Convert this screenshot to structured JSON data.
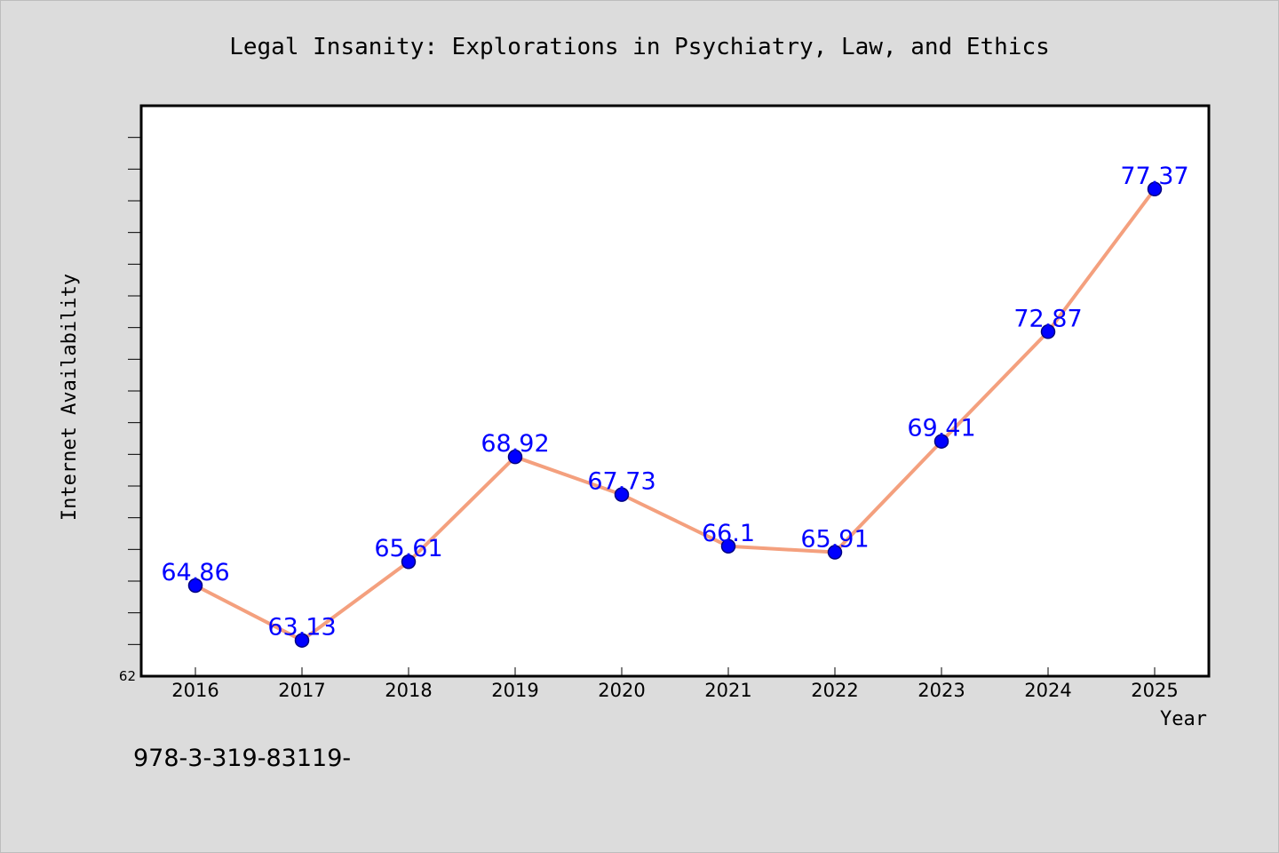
{
  "chart_data": {
    "type": "line",
    "title": "Legal Insanity: Explorations in Psychiatry, Law, and Ethics",
    "xlabel": "Year",
    "ylabel": "Internet Availability",
    "categories": [
      "2016",
      "2017",
      "2018",
      "2019",
      "2020",
      "2021",
      "2022",
      "2023",
      "2024",
      "2025"
    ],
    "series": [
      {
        "values": [
          64.86,
          63.13,
          65.61,
          68.92,
          67.73,
          66.1,
          65.91,
          69.41,
          72.87,
          77.37
        ],
        "data_labels": [
          "64.86",
          "63.13",
          "65.61",
          "68.92",
          "67.73",
          "66.1",
          "65.91",
          "69.41",
          "72.87",
          "77.37"
        ]
      }
    ],
    "ylim": [
      62,
      80
    ],
    "y_tick_labels": [
      "62"
    ],
    "grid": false,
    "legend": "none",
    "colors": {
      "line": "#f4a07e",
      "marker": "#0000ff",
      "marker_edge": "#000080",
      "data_label": "#0000ff",
      "background": "#dcdcdc",
      "plot_area": "#ffffff"
    }
  },
  "footnote": "978-3-319-83119-"
}
